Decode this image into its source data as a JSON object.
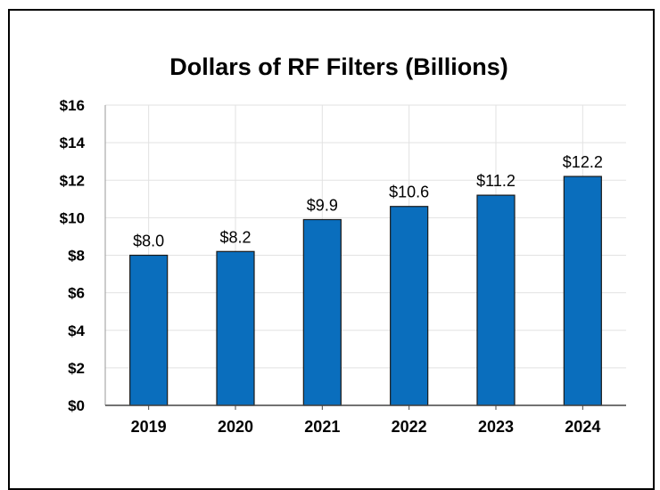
{
  "chart_data": {
    "type": "bar",
    "title": "Dollars of RF Filters (Billions)",
    "categories": [
      "2019",
      "2020",
      "2021",
      "2022",
      "2023",
      "2024"
    ],
    "values": [
      8.0,
      8.2,
      9.9,
      10.6,
      11.2,
      12.2
    ],
    "data_labels": [
      "$8.0",
      "$8.2",
      "$9.9",
      "$10.6",
      "$11.2",
      "$12.2"
    ],
    "yticks": [
      0,
      2,
      4,
      6,
      8,
      10,
      12,
      14,
      16
    ],
    "ytick_labels": [
      "$0",
      "$2",
      "$4",
      "$6",
      "$8",
      "$10",
      "$12",
      "$14",
      "$16"
    ],
    "ylim": [
      0,
      16
    ],
    "xlabel": "",
    "ylabel": "",
    "grid": true,
    "bar_color": "#0a6ebd",
    "bar_edge_color": "#1a1a1a",
    "grid_color": "#e2e2e2"
  }
}
